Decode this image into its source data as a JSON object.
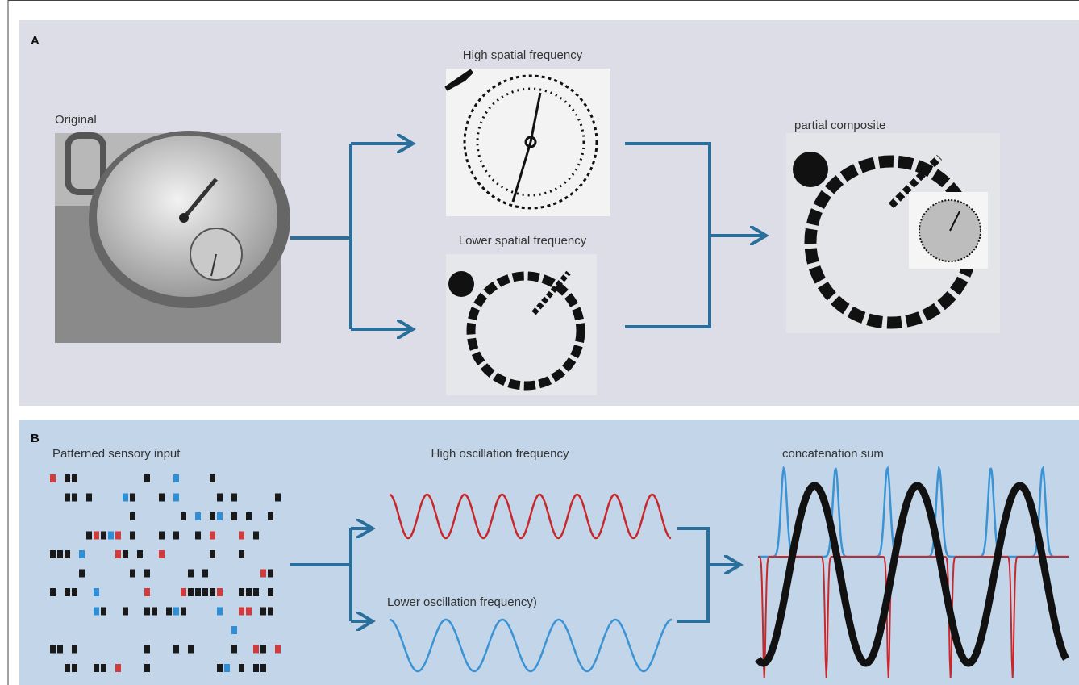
{
  "panel_a": {
    "label": "A",
    "original": "Original",
    "high": "High spatial  frequency",
    "low": "Lower spatial frequency",
    "composite": "partial composite"
  },
  "panel_b": {
    "label": "B",
    "input": "Patterned sensory input",
    "high": "High oscillation frequency",
    "low": "Lower oscillation frequency)",
    "sum": "concatenation sum"
  }
}
